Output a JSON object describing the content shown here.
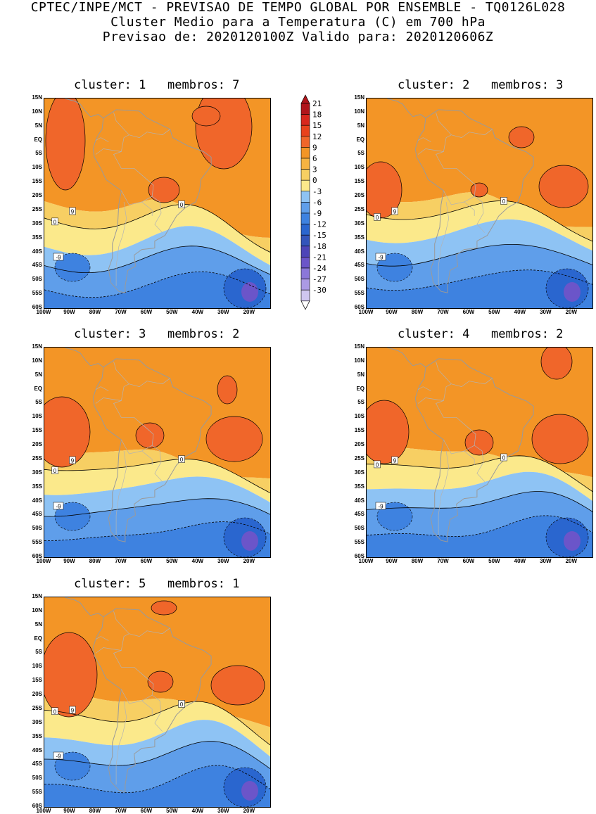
{
  "header": {
    "line1": "CPTEC/INPE/MCT - PREVISAO DE TEMPO GLOBAL POR ENSEMBLE - TQ0126L028",
    "line2": "Cluster Medio para a Temperatura (C) em 700 hPa",
    "line3": "Previsao de: 2020120100Z   Valido para: 2020120606Z"
  },
  "axes": {
    "lat_labels": [
      "15N",
      "10N",
      "5N",
      "EQ",
      "5S",
      "10S",
      "15S",
      "20S",
      "25S",
      "30S",
      "35S",
      "40S",
      "45S",
      "50S",
      "55S",
      "60S"
    ],
    "lon_labels": [
      "100W",
      "90W",
      "80W",
      "70W",
      "60W",
      "50W",
      "40W",
      "30W",
      "20W"
    ]
  },
  "colorbar": {
    "labels": [
      "21",
      "18",
      "15",
      "12",
      "9",
      "6",
      "3",
      "0",
      "-3",
      "-6",
      "-9",
      "-12",
      "-15",
      "-18",
      "-21",
      "-24",
      "-27",
      "-30"
    ],
    "colors": [
      "#b0151b",
      "#d8271d",
      "#e8421c",
      "#f0662a",
      "#f39526",
      "#f5b342",
      "#f7cf63",
      "#fbe98b",
      "#8ec3f4",
      "#5f9eea",
      "#3e82e0",
      "#2a66cf",
      "#3355bb",
      "#4d45b8",
      "#6b55c9",
      "#8b77d9",
      "#ab9ae4",
      "#cfc6ef"
    ]
  },
  "panels": [
    {
      "title": "cluster: 1   membros: 7",
      "cluster": 1,
      "members": 7
    },
    {
      "title": "cluster: 2   membros: 3",
      "cluster": 2,
      "members": 3
    },
    {
      "title": "cluster: 3   membros: 2",
      "cluster": 3,
      "members": 2
    },
    {
      "title": "cluster: 4   membros: 2",
      "cluster": 4,
      "members": 2
    },
    {
      "title": "cluster: 5   membros: 1",
      "cluster": 5,
      "members": 1
    }
  ],
  "contour_labels": [
    "9",
    "0",
    "-9"
  ]
}
